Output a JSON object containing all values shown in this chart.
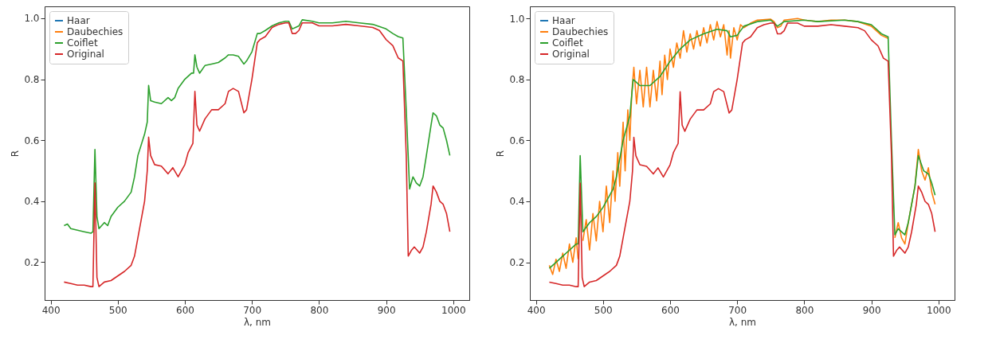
{
  "chart_data": [
    {
      "type": "line",
      "xlabel": "λ, nm",
      "ylabel": "R",
      "xlim": [
        391,
        1024
      ],
      "ylim": [
        0.076,
        1.039
      ],
      "xticks": [
        400,
        500,
        600,
        700,
        800,
        900,
        1000
      ],
      "yticks": [
        0.2,
        0.4,
        0.6,
        0.8,
        {
          "value": 1,
          "label": "1.0"
        }
      ],
      "grid": false,
      "legend": "top left",
      "series": [
        {
          "name": "Haar",
          "color": "#1f77b4"
        },
        {
          "name": "Daubechies",
          "color": "#ff7f0e"
        },
        {
          "name": "Coiflet",
          "color": "#2ca02c",
          "x": [
            420,
            425,
            430,
            440,
            450,
            460,
            463,
            466,
            469,
            472,
            480,
            485,
            490,
            500,
            510,
            520,
            525,
            530,
            540,
            544,
            546,
            549,
            555,
            565,
            575,
            580,
            585,
            590,
            600,
            610,
            613,
            615,
            618,
            622,
            630,
            640,
            650,
            660,
            665,
            672,
            680,
            688,
            692,
            700,
            708,
            712,
            720,
            730,
            740,
            750,
            755,
            760,
            765,
            770,
            775,
            790,
            800,
            820,
            840,
            860,
            880,
            900,
            910,
            918,
            925,
            930,
            935,
            940,
            945,
            950,
            955,
            960,
            967,
            970,
            975,
            980,
            985,
            990,
            995
          ],
          "values": [
            0.32,
            0.325,
            0.31,
            0.305,
            0.3,
            0.295,
            0.3,
            0.57,
            0.35,
            0.31,
            0.33,
            0.32,
            0.35,
            0.38,
            0.4,
            0.43,
            0.48,
            0.55,
            0.62,
            0.66,
            0.78,
            0.73,
            0.725,
            0.72,
            0.74,
            0.73,
            0.74,
            0.77,
            0.8,
            0.82,
            0.82,
            0.88,
            0.84,
            0.82,
            0.845,
            0.85,
            0.855,
            0.87,
            0.88,
            0.88,
            0.875,
            0.85,
            0.86,
            0.89,
            0.95,
            0.95,
            0.96,
            0.975,
            0.985,
            0.99,
            0.99,
            0.965,
            0.97,
            0.975,
            0.995,
            0.99,
            0.985,
            0.985,
            0.99,
            0.985,
            0.98,
            0.965,
            0.95,
            0.94,
            0.935,
            0.7,
            0.44,
            0.48,
            0.46,
            0.45,
            0.48,
            0.55,
            0.65,
            0.69,
            0.68,
            0.65,
            0.64,
            0.6,
            0.55
          ]
        },
        {
          "name": "Original",
          "color": "#d62728",
          "x": [
            420,
            430,
            440,
            450,
            460,
            463,
            466,
            469,
            472,
            480,
            490,
            500,
            510,
            520,
            525,
            530,
            535,
            540,
            544,
            546,
            549,
            555,
            565,
            575,
            582,
            590,
            600,
            605,
            612,
            615,
            618,
            622,
            630,
            640,
            650,
            660,
            665,
            672,
            680,
            688,
            692,
            700,
            708,
            712,
            720,
            730,
            740,
            750,
            755,
            760,
            765,
            770,
            775,
            790,
            800,
            820,
            840,
            860,
            880,
            890,
            900,
            910,
            918,
            925,
            930,
            933,
            938,
            942,
            950,
            955,
            960,
            967,
            970,
            975,
            980,
            985,
            990,
            995
          ],
          "values": [
            0.135,
            0.13,
            0.125,
            0.125,
            0.12,
            0.12,
            0.46,
            0.15,
            0.12,
            0.135,
            0.14,
            0.155,
            0.17,
            0.19,
            0.22,
            0.28,
            0.34,
            0.4,
            0.5,
            0.61,
            0.55,
            0.52,
            0.515,
            0.49,
            0.51,
            0.48,
            0.52,
            0.56,
            0.59,
            0.76,
            0.65,
            0.63,
            0.67,
            0.7,
            0.7,
            0.72,
            0.76,
            0.77,
            0.76,
            0.69,
            0.7,
            0.8,
            0.92,
            0.93,
            0.94,
            0.97,
            0.98,
            0.985,
            0.985,
            0.95,
            0.95,
            0.96,
            0.985,
            0.985,
            0.975,
            0.975,
            0.98,
            0.975,
            0.97,
            0.96,
            0.93,
            0.91,
            0.87,
            0.86,
            0.55,
            0.22,
            0.24,
            0.25,
            0.23,
            0.25,
            0.3,
            0.39,
            0.45,
            0.43,
            0.4,
            0.39,
            0.36,
            0.3
          ]
        }
      ]
    },
    {
      "type": "line",
      "xlabel": "λ, nm",
      "ylabel": "R",
      "xlim": [
        391,
        1024
      ],
      "ylim": [
        0.076,
        1.04
      ],
      "xticks": [
        400,
        500,
        600,
        700,
        800,
        900,
        1000
      ],
      "yticks": [
        0.2,
        0.4,
        0.6,
        0.8,
        {
          "value": 1,
          "label": "1.0"
        }
      ],
      "grid": false,
      "legend": "top left",
      "series": [
        {
          "name": "Haar",
          "color": "#1f77b4"
        },
        {
          "name": "Daubechies",
          "color": "#ff7f0e",
          "x": [
            420,
            425,
            430,
            435,
            440,
            445,
            450,
            455,
            460,
            463,
            466,
            470,
            475,
            480,
            485,
            490,
            495,
            500,
            505,
            510,
            515,
            518,
            522,
            525,
            530,
            533,
            537,
            540,
            543,
            546,
            550,
            555,
            560,
            565,
            570,
            575,
            580,
            585,
            588,
            592,
            596,
            600,
            605,
            610,
            615,
            620,
            625,
            630,
            635,
            640,
            645,
            650,
            655,
            660,
            665,
            670,
            675,
            680,
            685,
            688,
            690,
            695,
            700,
            705,
            710,
            720,
            730,
            750,
            755,
            760,
            765,
            770,
            790,
            800,
            820,
            840,
            860,
            880,
            900,
            915,
            925,
            930,
            935,
            940,
            945,
            950,
            955,
            965,
            970,
            975,
            980,
            985,
            990,
            995
          ],
          "values": [
            0.19,
            0.16,
            0.21,
            0.17,
            0.23,
            0.18,
            0.26,
            0.2,
            0.28,
            0.21,
            null,
            0.27,
            0.34,
            0.24,
            0.36,
            0.27,
            0.4,
            0.3,
            0.45,
            0.33,
            0.5,
            0.4,
            0.56,
            0.45,
            0.66,
            0.5,
            0.7,
            0.6,
            0.76,
            0.84,
            0.72,
            0.83,
            0.71,
            0.84,
            0.71,
            0.83,
            0.73,
            0.86,
            0.75,
            0.88,
            0.8,
            0.9,
            0.84,
            0.92,
            0.87,
            0.96,
            0.89,
            0.95,
            0.9,
            0.96,
            0.91,
            0.97,
            0.92,
            0.98,
            0.93,
            0.99,
            0.94,
            0.98,
            0.88,
            0.96,
            0.87,
            0.97,
            0.93,
            0.98,
            0.97,
            0.985,
            0.995,
            0.998,
            0.99,
            0.97,
            0.975,
            0.995,
            1.0,
            0.995,
            0.99,
            0.995,
            0.995,
            0.99,
            0.975,
            0.945,
            0.935,
            null,
            0.28,
            0.33,
            0.28,
            0.26,
            0.33,
            0.45,
            0.57,
            0.5,
            0.47,
            0.51,
            0.43,
            0.39
          ]
        },
        {
          "name": "Coiflet",
          "color": "#2ca02c",
          "x": [
            420,
            430,
            440,
            450,
            460,
            463,
            466,
            470,
            480,
            490,
            500,
            510,
            515,
            520,
            530,
            540,
            545,
            550,
            555,
            570,
            580,
            585,
            600,
            615,
            630,
            650,
            670,
            685,
            690,
            700,
            710,
            730,
            750,
            760,
            770,
            800,
            820,
            860,
            880,
            900,
            915,
            925,
            930,
            935,
            940,
            950,
            955,
            965,
            970,
            978,
            985,
            990,
            995
          ],
          "values": [
            0.18,
            0.2,
            0.22,
            0.24,
            0.26,
            0.26,
            0.55,
            0.3,
            0.33,
            0.35,
            0.38,
            0.42,
            0.44,
            0.48,
            0.6,
            0.68,
            0.8,
            0.79,
            0.78,
            0.78,
            0.8,
            0.81,
            0.86,
            0.9,
            0.93,
            0.95,
            0.965,
            0.96,
            0.94,
            0.945,
            0.975,
            0.99,
            0.995,
            0.975,
            0.99,
            0.995,
            0.99,
            0.995,
            0.99,
            0.98,
            0.95,
            0.94,
            0.6,
            0.29,
            0.31,
            0.29,
            0.33,
            0.45,
            0.55,
            0.5,
            0.49,
            0.46,
            0.42
          ]
        },
        {
          "name": "Original",
          "color": "#d62728",
          "x": [
            420,
            430,
            440,
            450,
            460,
            463,
            466,
            469,
            472,
            480,
            490,
            500,
            510,
            520,
            525,
            530,
            535,
            540,
            544,
            546,
            549,
            555,
            565,
            575,
            582,
            590,
            600,
            605,
            612,
            615,
            618,
            622,
            630,
            640,
            650,
            660,
            665,
            672,
            680,
            688,
            692,
            700,
            708,
            712,
            720,
            730,
            740,
            750,
            755,
            760,
            765,
            770,
            775,
            790,
            800,
            820,
            840,
            860,
            880,
            890,
            900,
            910,
            918,
            925,
            930,
            933,
            938,
            942,
            950,
            955,
            960,
            967,
            970,
            975,
            980,
            985,
            990,
            995
          ],
          "values": [
            0.135,
            0.13,
            0.125,
            0.125,
            0.12,
            0.12,
            0.46,
            0.15,
            0.12,
            0.135,
            0.14,
            0.155,
            0.17,
            0.19,
            0.22,
            0.28,
            0.34,
            0.4,
            0.5,
            0.61,
            0.55,
            0.52,
            0.515,
            0.49,
            0.51,
            0.48,
            0.52,
            0.56,
            0.59,
            0.76,
            0.65,
            0.63,
            0.67,
            0.7,
            0.7,
            0.72,
            0.76,
            0.77,
            0.76,
            0.69,
            0.7,
            0.8,
            0.92,
            0.93,
            0.94,
            0.97,
            0.98,
            0.985,
            0.985,
            0.95,
            0.95,
            0.96,
            0.985,
            0.985,
            0.975,
            0.975,
            0.98,
            0.975,
            0.97,
            0.96,
            0.93,
            0.91,
            0.87,
            0.86,
            0.55,
            0.22,
            0.24,
            0.25,
            0.23,
            0.25,
            0.3,
            0.39,
            0.45,
            0.43,
            0.4,
            0.39,
            0.36,
            0.3
          ]
        }
      ]
    }
  ]
}
